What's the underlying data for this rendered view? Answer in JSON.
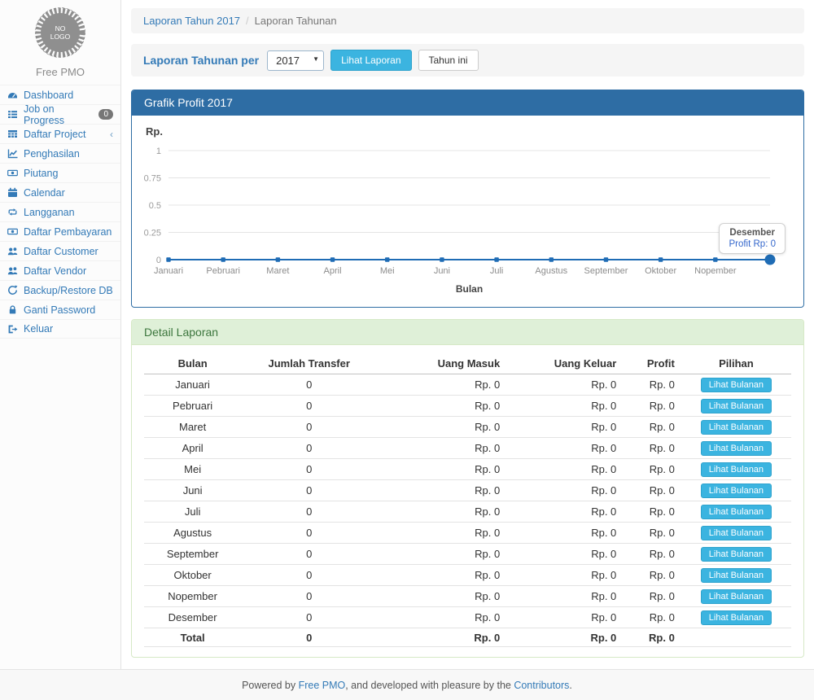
{
  "sidebar": {
    "logo_line1": "NO",
    "logo_line2": "LOGO",
    "brand": "Free PMO",
    "items": [
      {
        "label": "Dashboard",
        "icon": "dashboard-icon"
      },
      {
        "label": "Job on Progress",
        "icon": "tasks-icon",
        "badge": "0"
      },
      {
        "label": "Daftar Project",
        "icon": "table-icon",
        "chevron": "‹"
      },
      {
        "label": "Penghasilan",
        "icon": "line-chart-icon"
      },
      {
        "label": "Piutang",
        "icon": "money-icon"
      },
      {
        "label": "Calendar",
        "icon": "calendar-icon"
      },
      {
        "label": "Langganan",
        "icon": "retweet-icon"
      },
      {
        "label": "Daftar Pembayaran",
        "icon": "money-icon"
      },
      {
        "label": "Daftar Customer",
        "icon": "users-icon"
      },
      {
        "label": "Daftar Vendor",
        "icon": "users-icon"
      },
      {
        "label": "Backup/Restore DB",
        "icon": "refresh-icon"
      },
      {
        "label": "Ganti Password",
        "icon": "lock-icon"
      },
      {
        "label": "Keluar",
        "icon": "sign-out-icon"
      }
    ]
  },
  "breadcrumb": {
    "link": "Laporan Tahun 2017",
    "separator": "/",
    "current": "Laporan Tahunan"
  },
  "filter": {
    "label": "Laporan Tahunan per",
    "year": "2017",
    "view_button": "Lihat Laporan",
    "this_year_button": "Tahun ini"
  },
  "chart_panel": {
    "title": "Grafik Profit 2017",
    "currency_label": "Rp."
  },
  "chart_data": {
    "type": "line",
    "title": "Grafik Profit 2017",
    "categories": [
      "Januari",
      "Pebruari",
      "Maret",
      "April",
      "Mei",
      "Juni",
      "Juli",
      "Agustus",
      "September",
      "Oktober",
      "Nopember",
      "Desember"
    ],
    "values": [
      0,
      0,
      0,
      0,
      0,
      0,
      0,
      0,
      0,
      0,
      0,
      0
    ],
    "xlabel": "Bulan",
    "ylabel": "Rp.",
    "ylim": [
      0,
      1
    ],
    "yticks": [
      0,
      0.25,
      0.5,
      0.75,
      1
    ],
    "grid": true,
    "legend": false,
    "hide_last_x_label": true,
    "line_color": "#1f6cb5",
    "tooltip": {
      "title": "Desember",
      "value": "Profit Rp: 0"
    }
  },
  "detail": {
    "title": "Detail Laporan",
    "columns": [
      "Bulan",
      "Jumlah Transfer",
      "Uang Masuk",
      "Uang Keluar",
      "Profit",
      "Pilihan"
    ],
    "rows": [
      {
        "bulan": "Januari",
        "jumlah": "0",
        "masuk": "Rp. 0",
        "keluar": "Rp. 0",
        "profit": "Rp. 0",
        "action": "Lihat Bulanan"
      },
      {
        "bulan": "Pebruari",
        "jumlah": "0",
        "masuk": "Rp. 0",
        "keluar": "Rp. 0",
        "profit": "Rp. 0",
        "action": "Lihat Bulanan"
      },
      {
        "bulan": "Maret",
        "jumlah": "0",
        "masuk": "Rp. 0",
        "keluar": "Rp. 0",
        "profit": "Rp. 0",
        "action": "Lihat Bulanan"
      },
      {
        "bulan": "April",
        "jumlah": "0",
        "masuk": "Rp. 0",
        "keluar": "Rp. 0",
        "profit": "Rp. 0",
        "action": "Lihat Bulanan"
      },
      {
        "bulan": "Mei",
        "jumlah": "0",
        "masuk": "Rp. 0",
        "keluar": "Rp. 0",
        "profit": "Rp. 0",
        "action": "Lihat Bulanan"
      },
      {
        "bulan": "Juni",
        "jumlah": "0",
        "masuk": "Rp. 0",
        "keluar": "Rp. 0",
        "profit": "Rp. 0",
        "action": "Lihat Bulanan"
      },
      {
        "bulan": "Juli",
        "jumlah": "0",
        "masuk": "Rp. 0",
        "keluar": "Rp. 0",
        "profit": "Rp. 0",
        "action": "Lihat Bulanan"
      },
      {
        "bulan": "Agustus",
        "jumlah": "0",
        "masuk": "Rp. 0",
        "keluar": "Rp. 0",
        "profit": "Rp. 0",
        "action": "Lihat Bulanan"
      },
      {
        "bulan": "September",
        "jumlah": "0",
        "masuk": "Rp. 0",
        "keluar": "Rp. 0",
        "profit": "Rp. 0",
        "action": "Lihat Bulanan"
      },
      {
        "bulan": "Oktober",
        "jumlah": "0",
        "masuk": "Rp. 0",
        "keluar": "Rp. 0",
        "profit": "Rp. 0",
        "action": "Lihat Bulanan"
      },
      {
        "bulan": "Nopember",
        "jumlah": "0",
        "masuk": "Rp. 0",
        "keluar": "Rp. 0",
        "profit": "Rp. 0",
        "action": "Lihat Bulanan"
      },
      {
        "bulan": "Desember",
        "jumlah": "0",
        "masuk": "Rp. 0",
        "keluar": "Rp. 0",
        "profit": "Rp. 0",
        "action": "Lihat Bulanan"
      }
    ],
    "total": {
      "bulan": "Total",
      "jumlah": "0",
      "masuk": "Rp. 0",
      "keluar": "Rp. 0",
      "profit": "Rp. 0"
    }
  },
  "footer": {
    "text_before": "Powered by ",
    "link_freepmo": "Free PMO",
    "text_middle": ", and developed with pleasure by the ",
    "link_contributors": "Contributors",
    "text_after": "."
  },
  "colors": {
    "accent_link": "#337ab7",
    "panel_primary_header": "#2e6da4",
    "panel_success_bg": "#dff0d8",
    "panel_success_text": "#3c763d",
    "info_button": "#3bb4e0",
    "badge": "#777777",
    "chart_line": "#1f6cb5"
  }
}
